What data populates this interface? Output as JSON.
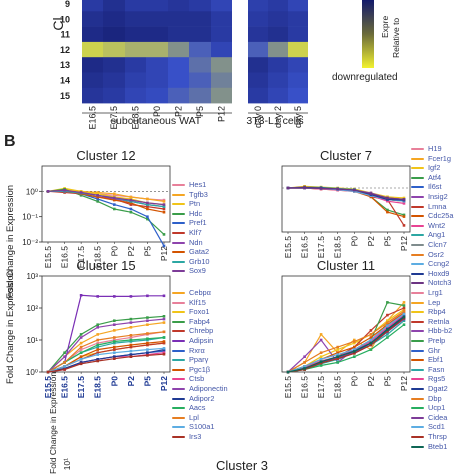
{
  "heatmap": {
    "row_axis_label": "Cl",
    "rows": [
      "9",
      "10",
      "11",
      "12",
      "13",
      "14",
      "15"
    ],
    "columns": [
      "E16.5",
      "E17.5",
      "E18.5",
      "P0",
      "P2",
      "P5",
      "P12",
      "day 0",
      "day 2",
      "day 5"
    ],
    "groups": [
      {
        "label": "subcutaneous WAT"
      },
      {
        "label": "3T3-L1 cells"
      }
    ],
    "values": [
      [
        0.3,
        0.2,
        0.3,
        0.3,
        0.25,
        0.3,
        0.4,
        0.35,
        0.3,
        0.4
      ],
      [
        0.2,
        0.15,
        0.2,
        0.2,
        0.2,
        0.2,
        0.3,
        0.3,
        0.25,
        0.3
      ],
      [
        0.15,
        0.1,
        0.15,
        0.15,
        0.2,
        0.2,
        0.3,
        0.25,
        0.2,
        0.3
      ],
      [
        0.9,
        0.85,
        0.8,
        0.8,
        0.7,
        0.55,
        0.4,
        0.55,
        0.7,
        0.9
      ],
      [
        0.15,
        0.2,
        0.3,
        0.4,
        0.5,
        0.6,
        0.7,
        0.2,
        0.3,
        0.4
      ],
      [
        0.2,
        0.25,
        0.35,
        0.4,
        0.5,
        0.55,
        0.65,
        0.25,
        0.35,
        0.45
      ],
      [
        0.25,
        0.3,
        0.4,
        0.45,
        0.55,
        0.6,
        0.7,
        0.3,
        0.4,
        0.5
      ]
    ],
    "colorbar": {
      "label_1": "Expre",
      "label_2": "Relative to",
      "low_label": "downregulated"
    }
  },
  "panel_b_label": "B",
  "y_axis_label": "Fold Change in Expression",
  "x_categories": [
    "E15.5",
    "E16.5",
    "E17.5",
    "E18.5",
    "P0",
    "P2",
    "P5",
    "P12"
  ],
  "colors": {
    "yellow": "#f2f230",
    "navy": "#131a6b",
    "blue": "#2e3fc0",
    "purple": "#7a2fb5",
    "orange": "#f5a623"
  },
  "chart_data": [
    {
      "type": "line",
      "title": "Cluster 12",
      "yscale": "log",
      "ylim": [
        0.01,
        10
      ],
      "yticks": [
        "10⁰",
        "10⁻¹",
        "10⁻²"
      ],
      "categories": [
        "E15.5",
        "E16.5",
        "E17.5",
        "E18.5",
        "P0",
        "P2",
        "P5",
        "P12"
      ],
      "series": [
        {
          "name": "Hes1",
          "color": "#e8809a",
          "values": [
            1,
            1.1,
            0.9,
            0.8,
            0.7,
            0.6,
            0.5,
            0.45
          ]
        },
        {
          "name": "Tgfb3",
          "color": "#f5a623",
          "values": [
            1,
            1.2,
            1.0,
            0.9,
            0.8,
            0.6,
            0.5,
            0.4
          ]
        },
        {
          "name": "Ptn",
          "color": "#f0c419",
          "values": [
            1,
            1.3,
            1.0,
            0.8,
            0.6,
            0.5,
            0.35,
            0.3
          ]
        },
        {
          "name": "Hdc",
          "color": "#3a9d4a",
          "values": [
            1,
            1.2,
            0.7,
            0.4,
            0.2,
            0.15,
            0.08,
            0.02
          ]
        },
        {
          "name": "Pref1",
          "color": "#2e60c9",
          "values": [
            1,
            1.1,
            0.8,
            0.5,
            0.3,
            0.2,
            0.1,
            0.007
          ]
        },
        {
          "name": "Klf7",
          "color": "#c0392b",
          "values": [
            1,
            0.9,
            0.8,
            0.6,
            0.5,
            0.3,
            0.25,
            0.2
          ]
        },
        {
          "name": "Ndn",
          "color": "#8e44ad",
          "values": [
            1,
            1.0,
            0.9,
            0.7,
            0.5,
            0.4,
            0.3,
            0.25
          ]
        },
        {
          "name": "Gata2",
          "color": "#d35400",
          "values": [
            1,
            1.1,
            0.8,
            0.6,
            0.45,
            0.35,
            0.2,
            0.15
          ]
        },
        {
          "name": "Grb10",
          "color": "#2ca7a3",
          "values": [
            1,
            1.0,
            0.85,
            0.7,
            0.55,
            0.4,
            0.3,
            0.25
          ]
        },
        {
          "name": "Sox9",
          "color": "#7d3c98",
          "values": [
            1,
            1.1,
            0.9,
            0.7,
            0.55,
            0.45,
            0.35,
            0.3
          ]
        }
      ]
    },
    {
      "type": "line",
      "title": "Cluster 7",
      "yscale": "log",
      "ylim": [
        0.01,
        10
      ],
      "yticks": [],
      "categories": [
        "E15.5",
        "E16.5",
        "E17.5",
        "E18.5",
        "P0",
        "P2",
        "P5",
        "P12"
      ],
      "series": [
        {
          "name": "H19",
          "color": "#e8809a",
          "values": [
            1,
            1.1,
            1.0,
            0.9,
            0.8,
            0.5,
            0.4,
            0.3
          ]
        },
        {
          "name": "Fcer1g",
          "color": "#f5a623",
          "values": [
            1,
            1.0,
            0.9,
            0.8,
            0.7,
            0.5,
            0.3,
            0.25
          ]
        },
        {
          "name": "Igf2",
          "color": "#f0c419",
          "values": [
            1,
            1.2,
            1.1,
            1.0,
            0.9,
            0.6,
            0.4,
            0.35
          ]
        },
        {
          "name": "Atf4",
          "color": "#3a9d4a",
          "values": [
            1,
            1.1,
            1.0,
            0.9,
            0.8,
            0.4,
            0.1,
            0.06
          ]
        },
        {
          "name": "Il6st",
          "color": "#2e60c9",
          "values": [
            1,
            1.0,
            0.95,
            0.9,
            0.85,
            0.5,
            0.3,
            0.3
          ]
        },
        {
          "name": "Insig2",
          "color": "#8e44ad",
          "values": [
            1,
            1.1,
            1.0,
            0.9,
            0.8,
            0.6,
            0.35,
            0.3
          ]
        },
        {
          "name": "Lmna",
          "color": "#c0392b",
          "values": [
            1,
            1.0,
            0.9,
            0.85,
            0.8,
            0.4,
            0.3,
            0.02
          ]
        },
        {
          "name": "Cdc25a",
          "color": "#d35400",
          "values": [
            1,
            1.1,
            1.0,
            0.9,
            0.7,
            0.4,
            0.08,
            0.05
          ]
        },
        {
          "name": "Wnt2",
          "color": "#e84393",
          "values": [
            1,
            1.0,
            0.9,
            0.8,
            0.7,
            0.45,
            0.25,
            0.2
          ]
        },
        {
          "name": "Ang1",
          "color": "#2ca7a3",
          "values": [
            1,
            1.1,
            1.05,
            0.95,
            0.85,
            0.5,
            0.3,
            0.25
          ]
        },
        {
          "name": "Clcn7",
          "color": "#7f8c8d",
          "values": [
            1,
            1.0,
            0.95,
            0.9,
            0.8,
            0.55,
            0.35,
            0.3
          ]
        },
        {
          "name": "Osr2",
          "color": "#e67e22",
          "values": [
            1,
            1.1,
            1.0,
            0.9,
            0.75,
            0.5,
            0.3,
            0.25
          ]
        },
        {
          "name": "Ccng2",
          "color": "#5dade2",
          "values": [
            1,
            1.0,
            0.95,
            0.85,
            0.7,
            0.45,
            0.3,
            0.25
          ]
        },
        {
          "name": "Hoxd9",
          "color": "#1f3a93",
          "values": [
            1,
            1.05,
            1.0,
            0.9,
            0.8,
            0.5,
            0.3,
            0.28
          ]
        },
        {
          "name": "Notch3",
          "color": "#6c3483",
          "values": [
            1,
            1.0,
            0.95,
            0.9,
            0.8,
            0.55,
            0.35,
            0.3
          ]
        }
      ]
    },
    {
      "type": "line",
      "title": "Cluster 15",
      "yscale": "log",
      "ylim": [
        1,
        1000
      ],
      "yticks": [
        "10³",
        "10²",
        "10¹",
        "10⁰"
      ],
      "categories": [
        "E15.5",
        "E16.5",
        "E17.5",
        "E18.5",
        "P0",
        "P2",
        "P5",
        "P12"
      ],
      "series": [
        {
          "name": "Cebpα",
          "color": "#f5a623",
          "values": [
            1,
            3,
            8,
            15,
            20,
            25,
            30,
            35
          ]
        },
        {
          "name": "Klf15",
          "color": "#e8809a",
          "values": [
            1,
            2,
            5,
            8,
            10,
            12,
            15,
            18
          ]
        },
        {
          "name": "Foxo1",
          "color": "#f0c419",
          "values": [
            1,
            1.5,
            3,
            4,
            5,
            6,
            7,
            8
          ]
        },
        {
          "name": "Fabp4",
          "color": "#3a9d4a",
          "values": [
            1,
            4,
            15,
            30,
            40,
            45,
            50,
            55
          ]
        },
        {
          "name": "Chrebp",
          "color": "#c0392b",
          "values": [
            1,
            1.5,
            2.5,
            4,
            5,
            6,
            7,
            8
          ]
        },
        {
          "name": "Adipsin",
          "color": "#7a2fb5",
          "values": [
            1,
            2,
            250,
            230,
            230,
            230,
            240,
            240
          ]
        },
        {
          "name": "Rxrα",
          "color": "#2e60c9",
          "values": [
            1,
            1.3,
            2,
            2.5,
            3,
            3.5,
            4,
            4.5
          ]
        },
        {
          "name": "Pparγ",
          "color": "#2ca7a3",
          "values": [
            1,
            2,
            4,
            6,
            8,
            9,
            10,
            12
          ]
        },
        {
          "name": "Pgc1β",
          "color": "#d35400",
          "values": [
            1,
            1.5,
            3,
            5,
            6,
            7,
            8,
            9
          ]
        },
        {
          "name": "Ctsb",
          "color": "#e84393",
          "values": [
            1,
            1.2,
            2,
            2.5,
            3,
            3,
            3.5,
            4
          ]
        },
        {
          "name": "Adiponectin",
          "color": "#8e44ad",
          "values": [
            1,
            3,
            12,
            25,
            30,
            35,
            40,
            45
          ]
        },
        {
          "name": "Adipor2",
          "color": "#1f3a93",
          "values": [
            1,
            1.3,
            2,
            2.5,
            3,
            3.5,
            4,
            5
          ]
        },
        {
          "name": "Aacs",
          "color": "#27ae60",
          "values": [
            1,
            2,
            4,
            7,
            9,
            10,
            11,
            12
          ]
        },
        {
          "name": "Lpl",
          "color": "#e67e22",
          "values": [
            1,
            2,
            6,
            10,
            12,
            14,
            16,
            18
          ]
        },
        {
          "name": "S100a1",
          "color": "#5dade2",
          "values": [
            1,
            1.5,
            2.5,
            3.5,
            4,
            4.5,
            5,
            5.5
          ]
        },
        {
          "name": "Irs3",
          "color": "#a93226",
          "values": [
            1,
            1.2,
            1.8,
            2.2,
            2.6,
            3,
            3.3,
            3.6
          ]
        }
      ]
    },
    {
      "type": "line",
      "title": "Cluster 11",
      "yscale": "log",
      "ylim": [
        1,
        1000
      ],
      "yticks": [],
      "categories": [
        "E15.5",
        "E16.5",
        "E17.5",
        "E18.5",
        "P0",
        "P2",
        "P5",
        "P12"
      ],
      "series": [
        {
          "name": "Lrg1",
          "color": "#e8809a",
          "values": [
            1,
            1.3,
            2,
            3,
            5,
            10,
            30,
            80
          ]
        },
        {
          "name": "Lep",
          "color": "#f5a623",
          "values": [
            1,
            2,
            15,
            4,
            10,
            5,
            40,
            150
          ]
        },
        {
          "name": "Rbp4",
          "color": "#f0c419",
          "values": [
            1,
            1.5,
            3,
            5,
            8,
            15,
            40,
            90
          ]
        },
        {
          "name": "Retnla",
          "color": "#c0392b",
          "values": [
            1,
            1.2,
            2,
            3,
            6,
            20,
            60,
            100
          ]
        },
        {
          "name": "Hbb-b2",
          "color": "#8e44ad",
          "values": [
            1,
            3,
            10,
            2,
            5,
            8,
            20,
            60
          ]
        },
        {
          "name": "Prelp",
          "color": "#3a9d4a",
          "values": [
            1,
            1.5,
            2,
            3,
            5,
            10,
            150,
            120
          ]
        },
        {
          "name": "Ghr",
          "color": "#2e60c9",
          "values": [
            1,
            1.3,
            2,
            2.5,
            4,
            8,
            20,
            50
          ]
        },
        {
          "name": "Ebf1",
          "color": "#d35400",
          "values": [
            1,
            1.5,
            2.5,
            4,
            6,
            12,
            30,
            70
          ]
        },
        {
          "name": "Fasn",
          "color": "#2ca7a3",
          "values": [
            1,
            1.2,
            1.8,
            2.5,
            4,
            7,
            15,
            40
          ]
        },
        {
          "name": "Rgs5",
          "color": "#e84393",
          "values": [
            1,
            1.4,
            2.2,
            3,
            5,
            9,
            25,
            60
          ]
        },
        {
          "name": "Dgat2",
          "color": "#1f3a93",
          "values": [
            1,
            1.3,
            2,
            3,
            4.5,
            8,
            22,
            55
          ]
        },
        {
          "name": "Dbp",
          "color": "#e67e22",
          "values": [
            1,
            2,
            4,
            6,
            9,
            15,
            35,
            80
          ]
        },
        {
          "name": "Ucp1",
          "color": "#27ae60",
          "values": [
            1,
            1.2,
            1.6,
            2,
            3,
            5,
            12,
            30
          ]
        },
        {
          "name": "Cidea",
          "color": "#7d3c98",
          "values": [
            1,
            1.3,
            2,
            2.8,
            4,
            7,
            18,
            45
          ]
        },
        {
          "name": "Scd1",
          "color": "#5dade2",
          "values": [
            1,
            1.5,
            2.5,
            3.5,
            5,
            10,
            28,
            65
          ]
        },
        {
          "name": "Thrsp",
          "color": "#a93226",
          "values": [
            1,
            1.2,
            1.9,
            2.6,
            3.8,
            7,
            19,
            48
          ]
        },
        {
          "name": "Bteb1",
          "color": "#0e6655",
          "values": [
            1,
            1.3,
            2.1,
            3,
            4.4,
            8,
            21,
            52
          ]
        }
      ]
    },
    {
      "type": "line",
      "title": "Cluster 3",
      "yscale": "log",
      "yticks": [
        "10¹"
      ],
      "categories": [],
      "series": []
    }
  ]
}
